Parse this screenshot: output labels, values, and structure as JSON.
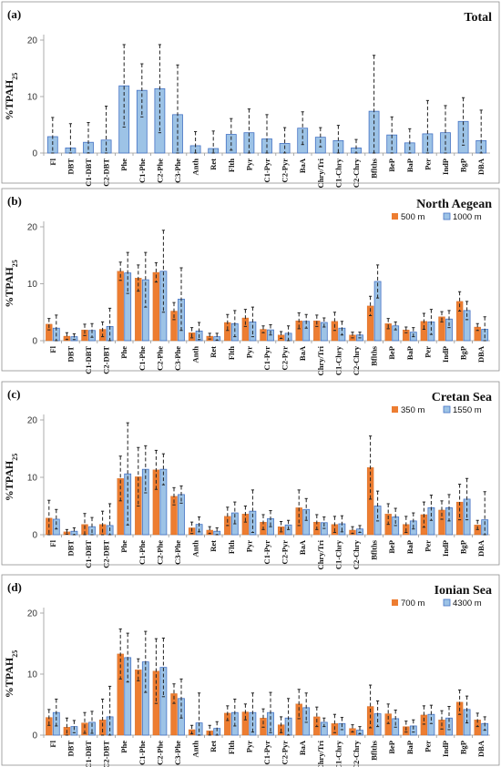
{
  "y_axis_label": "%TPAH",
  "y_axis_label_sub": "25",
  "categories": [
    "Fl",
    "DBT",
    "C1-DBT",
    "C2-DBT",
    "Phe",
    "C1-Phe",
    "C2-Phe",
    "C3-Phe",
    "Anth",
    "Ret",
    "Flth",
    "Pyr",
    "C1-Pyr",
    "C2-Pyr",
    "BaA",
    "Chry/Tri",
    "C1-Chry",
    "C2-Chry",
    "Bflths",
    "BeP",
    "BaP",
    "Per",
    "IndP",
    "BgP",
    "DBA"
  ],
  "colors": {
    "orange": "#ed7d31",
    "blue": "#9dc3e6",
    "blue_edge": "#4472c4",
    "orange_edge": "#c55a11"
  },
  "chart_data": [
    {
      "type": "bar",
      "letter": "(a)",
      "title": "Total",
      "ylim": [
        0,
        20
      ],
      "yticks": [
        0,
        10,
        20
      ],
      "series": [
        {
          "name": "",
          "color": "blue",
          "values": [
            2.9,
            0.9,
            1.9,
            2.3,
            11.9,
            11.1,
            11.4,
            6.8,
            1.3,
            0.8,
            3.3,
            3.6,
            2.5,
            1.7,
            4.4,
            2.8,
            2.2,
            0.9,
            7.4,
            3.2,
            1.8,
            3.4,
            3.6,
            5.6,
            2.2
          ],
          "errors": [
            3.4,
            4.3,
            3.5,
            6.0,
            7.3,
            4.7,
            7.8,
            8.8,
            2.5,
            3.1,
            2.8,
            4.2,
            4.3,
            2.8,
            2.9,
            1.7,
            2.7,
            1.5,
            9.9,
            3.2,
            2.5,
            5.9,
            4.8,
            4.2,
            5.4
          ]
        }
      ]
    },
    {
      "type": "bar",
      "letter": "(b)",
      "title": "North Aegean",
      "ylim": [
        0,
        20
      ],
      "yticks": [
        0,
        10,
        20
      ],
      "series": [
        {
          "name": "500 m",
          "color": "orange",
          "values": [
            2.9,
            0.8,
            1.9,
            2.0,
            12.2,
            11.0,
            12.0,
            5.2,
            1.4,
            0.8,
            3.2,
            4.0,
            2.0,
            1.0,
            3.5,
            3.5,
            3.4,
            1.0,
            6.1,
            3.0,
            1.9,
            3.4,
            4.2,
            6.9,
            2.4
          ],
          "errors": [
            1.0,
            0.6,
            1.0,
            1.3,
            1.6,
            2.3,
            1.7,
            1.5,
            0.9,
            0.5,
            1.4,
            1.5,
            0.6,
            0.6,
            1.4,
            1.0,
            1.6,
            0.5,
            1.7,
            0.9,
            0.5,
            1.4,
            0.9,
            1.7,
            0.6
          ]
        },
        {
          "name": "1000 m",
          "color": "blue",
          "values": [
            2.2,
            0.7,
            1.8,
            2.5,
            11.9,
            10.7,
            12.2,
            7.3,
            1.7,
            0.7,
            3.0,
            3.3,
            1.9,
            1.3,
            3.4,
            3.2,
            2.2,
            1.0,
            10.4,
            2.6,
            1.5,
            3.3,
            3.8,
            5.3,
            2.0
          ],
          "errors": [
            2.3,
            0.5,
            1.2,
            3.2,
            3.6,
            4.8,
            7.2,
            5.5,
            1.5,
            0.6,
            2.3,
            2.6,
            0.9,
            1.3,
            1.2,
            0.8,
            1.2,
            0.5,
            2.9,
            0.7,
            0.8,
            2.2,
            1.5,
            1.6,
            2.2
          ]
        }
      ]
    },
    {
      "type": "bar",
      "letter": "(c)",
      "title": "Cretan Sea",
      "ylim": [
        0,
        20
      ],
      "yticks": [
        0,
        10,
        20
      ],
      "series": [
        {
          "name": "350 m",
          "color": "orange",
          "values": [
            2.9,
            0.5,
            1.8,
            1.8,
            9.8,
            10.1,
            11.3,
            6.7,
            1.2,
            0.8,
            3.2,
            3.6,
            2.2,
            1.4,
            4.7,
            2.2,
            1.8,
            0.8,
            11.7,
            3.6,
            1.8,
            3.5,
            4.3,
            5.7,
            1.7
          ],
          "errors": [
            3.1,
            0.4,
            1.9,
            2.3,
            3.9,
            5.1,
            3.4,
            1.5,
            1.0,
            0.6,
            1.6,
            1.4,
            1.3,
            0.9,
            3.1,
            1.3,
            1.4,
            0.6,
            5.5,
            1.8,
            1.4,
            2.2,
            1.6,
            3.1,
            0.8
          ]
        },
        {
          "name": "1550 m",
          "color": "blue",
          "values": [
            2.7,
            0.6,
            1.4,
            1.6,
            10.6,
            11.4,
            11.4,
            7.0,
            1.8,
            0.6,
            3.8,
            4.1,
            2.8,
            1.7,
            4.4,
            2.1,
            1.9,
            1.0,
            5.0,
            3.1,
            2.4,
            4.7,
            4.7,
            6.2,
            2.6
          ],
          "errors": [
            1.7,
            0.6,
            1.6,
            3.8,
            8.9,
            4.1,
            2.7,
            1.5,
            1.3,
            0.6,
            1.9,
            3.7,
            1.4,
            0.8,
            1.9,
            1.0,
            1.4,
            0.6,
            2.6,
            1.5,
            1.4,
            2.2,
            2.3,
            3.6,
            4.9
          ]
        }
      ]
    },
    {
      "type": "bar",
      "letter": "(d)",
      "title": "Ionian Sea",
      "ylim": [
        0,
        20
      ],
      "yticks": [
        0,
        10,
        20
      ],
      "series": [
        {
          "name": "700 m",
          "color": "orange",
          "values": [
            2.9,
            1.3,
            2.0,
            2.5,
            13.3,
            10.7,
            10.5,
            6.8,
            0.9,
            0.7,
            3.6,
            3.8,
            2.8,
            1.7,
            5.1,
            3.0,
            1.9,
            1.1,
            4.7,
            3.5,
            1.4,
            3.3,
            2.5,
            5.4,
            2.5
          ],
          "errors": [
            1.3,
            1.5,
            1.7,
            3.4,
            4.1,
            1.8,
            5.3,
            1.6,
            0.7,
            0.9,
            1.2,
            1.3,
            1.5,
            1.3,
            2.4,
            1.6,
            1.5,
            0.6,
            3.5,
            1.6,
            0.9,
            1.5,
            1.5,
            2.0,
            1.1
          ]
        },
        {
          "name": "4300 m",
          "color": "blue",
          "values": [
            3.7,
            1.4,
            2.1,
            3.0,
            12.7,
            12.0,
            11.1,
            6.0,
            2.0,
            1.1,
            3.7,
            3.7,
            3.7,
            2.8,
            4.5,
            2.1,
            1.9,
            0.8,
            3.5,
            2.7,
            1.5,
            3.4,
            2.8,
            4.2,
            1.9
          ],
          "errors": [
            2.2,
            1.0,
            1.8,
            5.0,
            4.0,
            5.0,
            4.8,
            3.2,
            4.9,
            1.1,
            2.2,
            3.2,
            3.3,
            3.2,
            2.4,
            0.7,
            1.0,
            0.6,
            2.1,
            1.4,
            1.0,
            1.5,
            1.9,
            2.2,
            1.1
          ]
        }
      ]
    }
  ]
}
